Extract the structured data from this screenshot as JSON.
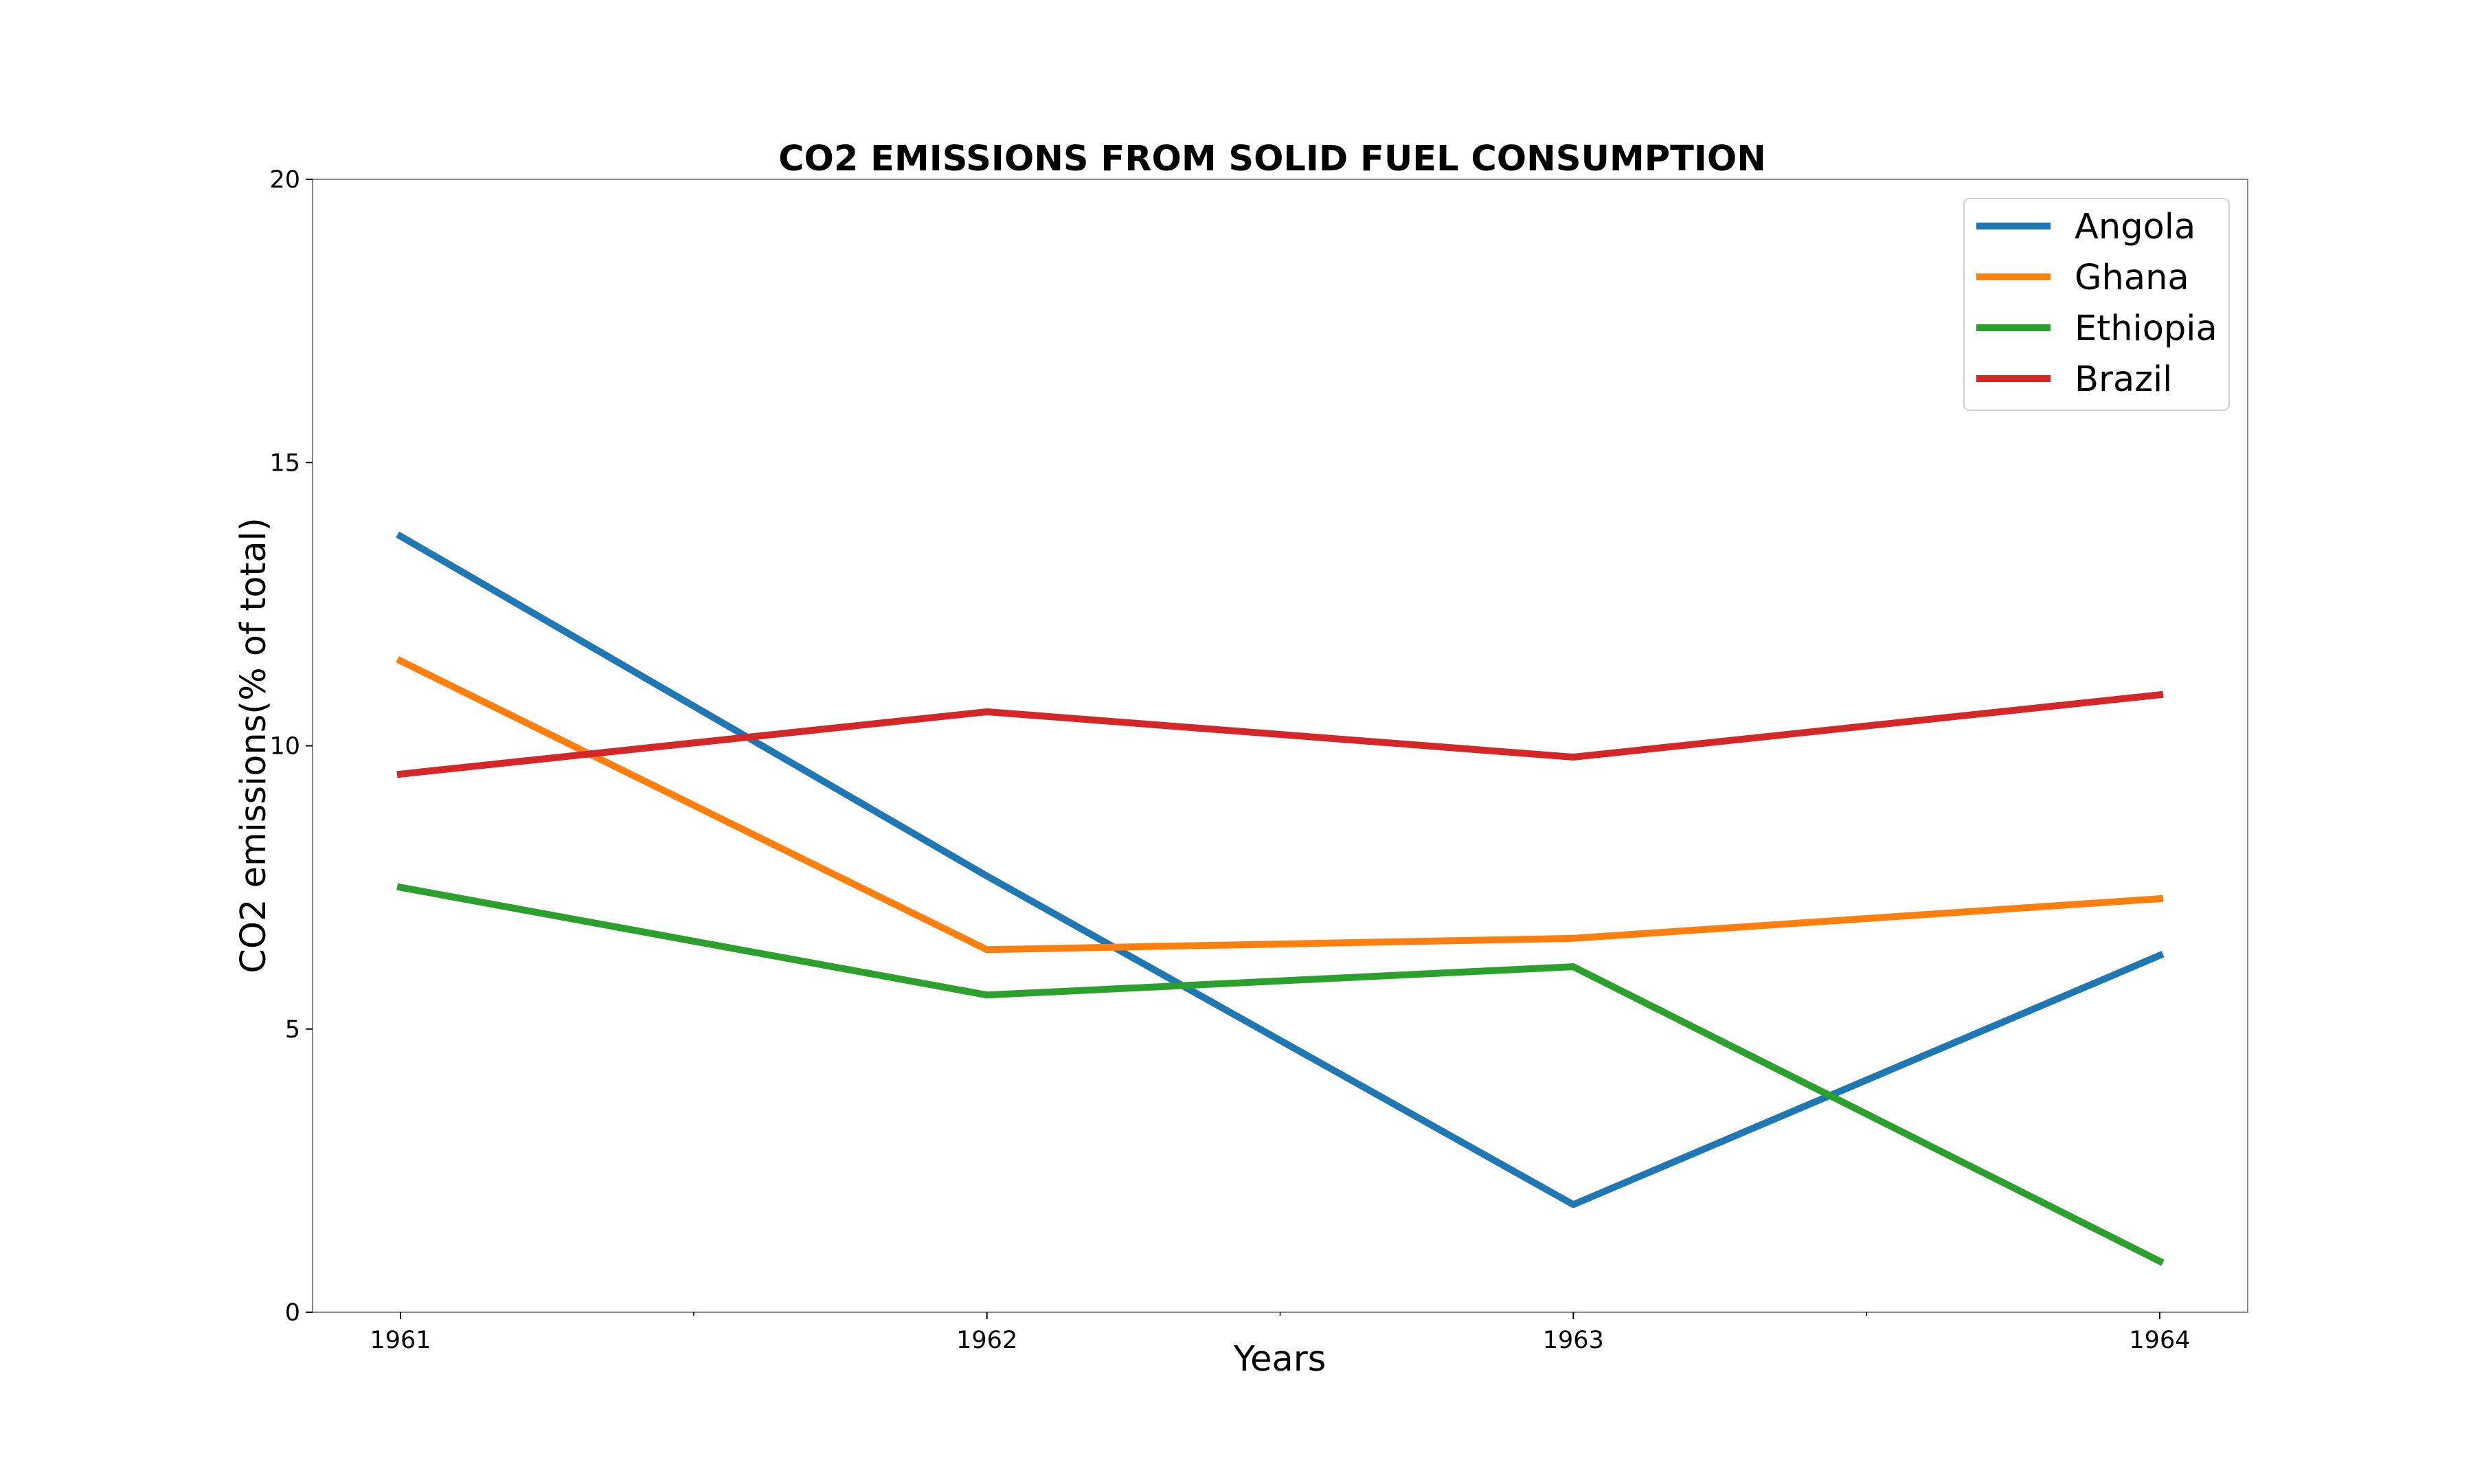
{
  "chart_data": {
    "type": "line",
    "title": "CO2 EMISSIONS FROM SOLID FUEL CONSUMPTION",
    "xlabel": "Years",
    "ylabel": "CO2 emissions(% of total)",
    "x": [
      1961,
      1962,
      1963,
      1964
    ],
    "x_tick_labels": [
      "1961",
      "1962",
      "1963",
      "1964"
    ],
    "xlim": [
      1960.85,
      1964.15
    ],
    "ylim": [
      0,
      20
    ],
    "y_ticks": [
      0,
      5,
      10,
      15,
      20
    ],
    "y_tick_labels": [
      "0",
      "5",
      "10",
      "15",
      "20"
    ],
    "grid": false,
    "legend_position": "top-right",
    "series": [
      {
        "name": "Angola",
        "color": "#1f77b4",
        "values": [
          13.7,
          7.7,
          1.9,
          6.3
        ]
      },
      {
        "name": "Ghana",
        "color": "#ff7f0e",
        "values": [
          11.5,
          6.4,
          6.6,
          7.3
        ]
      },
      {
        "name": "Ethiopia",
        "color": "#2ca02c",
        "values": [
          7.5,
          5.6,
          6.1,
          0.9
        ]
      },
      {
        "name": "Brazil",
        "color": "#d62728",
        "values": [
          9.5,
          10.6,
          9.8,
          10.9
        ]
      }
    ]
  }
}
